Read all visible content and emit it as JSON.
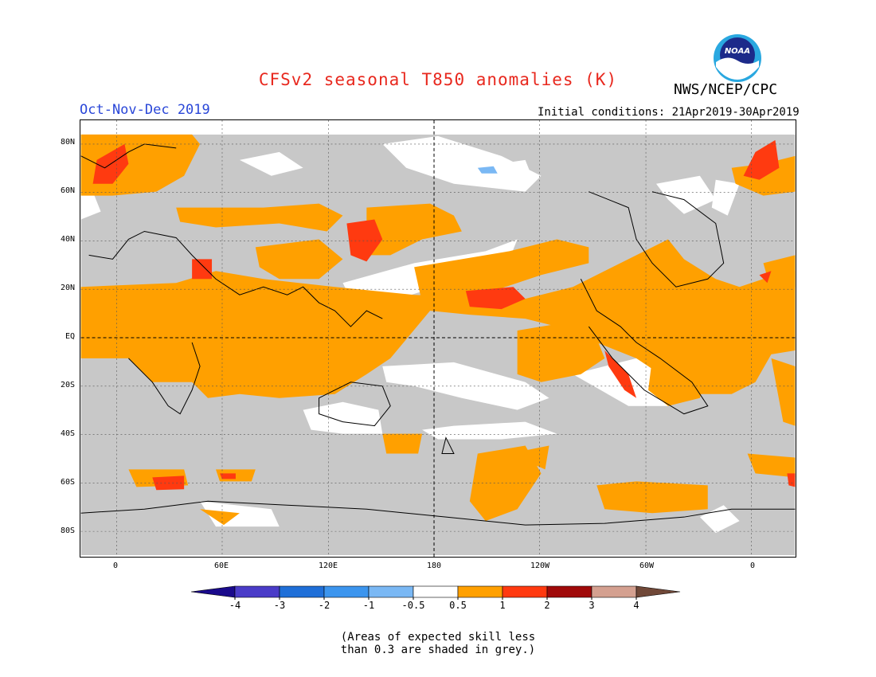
{
  "title": "CFSv2 seasonal T850 anomalies (K)",
  "agency": "NWS/NCEP/CPC",
  "logo_text": "NOAA",
  "period": "Oct-Nov-Dec 2019",
  "initial_conditions": "Initial conditions: 21Apr2019-30Apr2019",
  "lat_labels": [
    "80N",
    "60N",
    "40N",
    "20N",
    "EQ",
    "20S",
    "40S",
    "60S",
    "80S"
  ],
  "lon_labels": [
    "0",
    "60E",
    "120E",
    "180",
    "120W",
    "60W",
    "0"
  ],
  "colorbar": {
    "labels": [
      "-4",
      "-3",
      "-2",
      "-1",
      "-0.5",
      "0.5",
      "1",
      "2",
      "3",
      "4"
    ],
    "colors": [
      "#1a0a8c",
      "#4a3cc8",
      "#1f6fd8",
      "#3c95ee",
      "#7ab8f4",
      "#ffffff",
      "#ffa000",
      "#ff3a10",
      "#a00a0a",
      "#d4a090",
      "#704838"
    ]
  },
  "colors": {
    "grey_skill": "#c8c8c8",
    "title": "#e8281e",
    "period": "#2a47d8"
  },
  "note": {
    "line1": "(Areas of expected skill less",
    "line2": "than 0.3 are shaded in grey.)"
  }
}
